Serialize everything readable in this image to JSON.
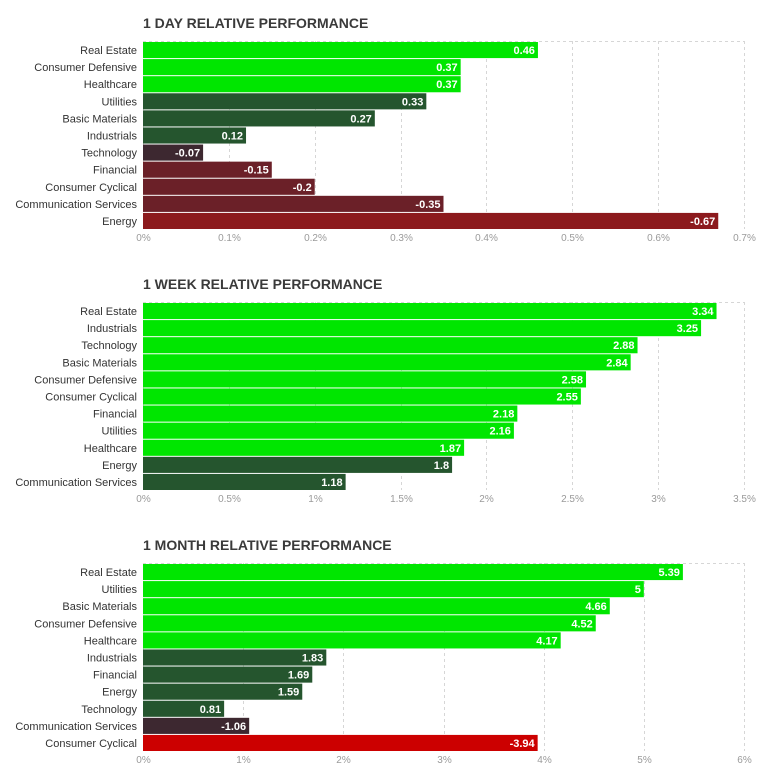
{
  "chart_data": [
    {
      "type": "bar",
      "orientation": "horizontal",
      "title": "1 DAY RELATIVE PERFORMANCE",
      "categories": [
        "Real Estate",
        "Consumer Defensive",
        "Healthcare",
        "Utilities",
        "Basic Materials",
        "Industrials",
        "Technology",
        "Financial",
        "Consumer Cyclical",
        "Communication Services",
        "Energy"
      ],
      "values": [
        0.46,
        0.37,
        0.37,
        0.33,
        0.27,
        0.12,
        -0.07,
        -0.15,
        -0.2,
        -0.35,
        -0.67
      ],
      "value_labels": [
        "0.46",
        "0.37",
        "0.37",
        "0.33",
        "0.27",
        "0.12",
        "-0.07",
        "-0.15",
        "-0.2",
        "-0.35",
        "-0.67"
      ],
      "xlim": [
        0,
        0.7
      ],
      "x_ticks": [
        0,
        0.1,
        0.2,
        0.3,
        0.4,
        0.5,
        0.6,
        0.7
      ],
      "x_tick_labels": [
        "0%",
        "0.1%",
        "0.2%",
        "0.3%",
        "0.4%",
        "0.5%",
        "0.6%",
        "0.7%"
      ],
      "bar_length_uses_absolute_value": true,
      "grid": true,
      "xlabel": "",
      "ylabel": ""
    },
    {
      "type": "bar",
      "orientation": "horizontal",
      "title": "1 WEEK RELATIVE PERFORMANCE",
      "categories": [
        "Real Estate",
        "Industrials",
        "Technology",
        "Basic Materials",
        "Consumer Defensive",
        "Consumer Cyclical",
        "Financial",
        "Utilities",
        "Healthcare",
        "Energy",
        "Communication Services"
      ],
      "values": [
        3.34,
        3.25,
        2.88,
        2.84,
        2.58,
        2.55,
        2.18,
        2.16,
        1.87,
        1.8,
        1.18
      ],
      "value_labels": [
        "3.34",
        "3.25",
        "2.88",
        "2.84",
        "2.58",
        "2.55",
        "2.18",
        "2.16",
        "1.87",
        "1.8",
        "1.18"
      ],
      "xlim": [
        0,
        3.5
      ],
      "x_ticks": [
        0,
        0.5,
        1,
        1.5,
        2,
        2.5,
        3,
        3.5
      ],
      "x_tick_labels": [
        "0%",
        "0.5%",
        "1%",
        "1.5%",
        "2%",
        "2.5%",
        "3%",
        "3.5%"
      ],
      "bar_length_uses_absolute_value": true,
      "grid": true,
      "xlabel": "",
      "ylabel": ""
    },
    {
      "type": "bar",
      "orientation": "horizontal",
      "title": "1 MONTH RELATIVE PERFORMANCE",
      "categories": [
        "Real Estate",
        "Utilities",
        "Basic Materials",
        "Consumer Defensive",
        "Healthcare",
        "Industrials",
        "Financial",
        "Energy",
        "Technology",
        "Communication Services",
        "Consumer Cyclical"
      ],
      "values": [
        5.39,
        5,
        4.66,
        4.52,
        4.17,
        1.83,
        1.69,
        1.59,
        0.81,
        -1.06,
        -3.94
      ],
      "value_labels": [
        "5.39",
        "5",
        "4.66",
        "4.52",
        "4.17",
        "1.83",
        "1.69",
        "1.59",
        "0.81",
        "-1.06",
        "-3.94"
      ],
      "xlim": [
        0,
        6
      ],
      "x_ticks": [
        0,
        1,
        2,
        3,
        4,
        5,
        6
      ],
      "x_tick_labels": [
        "0%",
        "1%",
        "2%",
        "3%",
        "4%",
        "5%",
        "6%"
      ],
      "bar_length_uses_absolute_value": true,
      "grid": true,
      "xlabel": "",
      "ylabel": ""
    }
  ],
  "colors": {
    "strong_positive": "#00e600",
    "positive": "#25552e",
    "weak_positive": "#2a3a2f",
    "weak_negative": "#3d2830",
    "negative": "#6b2028",
    "strong_negative": "#8c1a1d",
    "deep_negative": "#cc0000",
    "grid": "#d6d6d6",
    "title_text": "#3a3a3a",
    "category_text": "#333333",
    "tick_text": "#9a9a9a",
    "value_text": "#ffffff"
  }
}
